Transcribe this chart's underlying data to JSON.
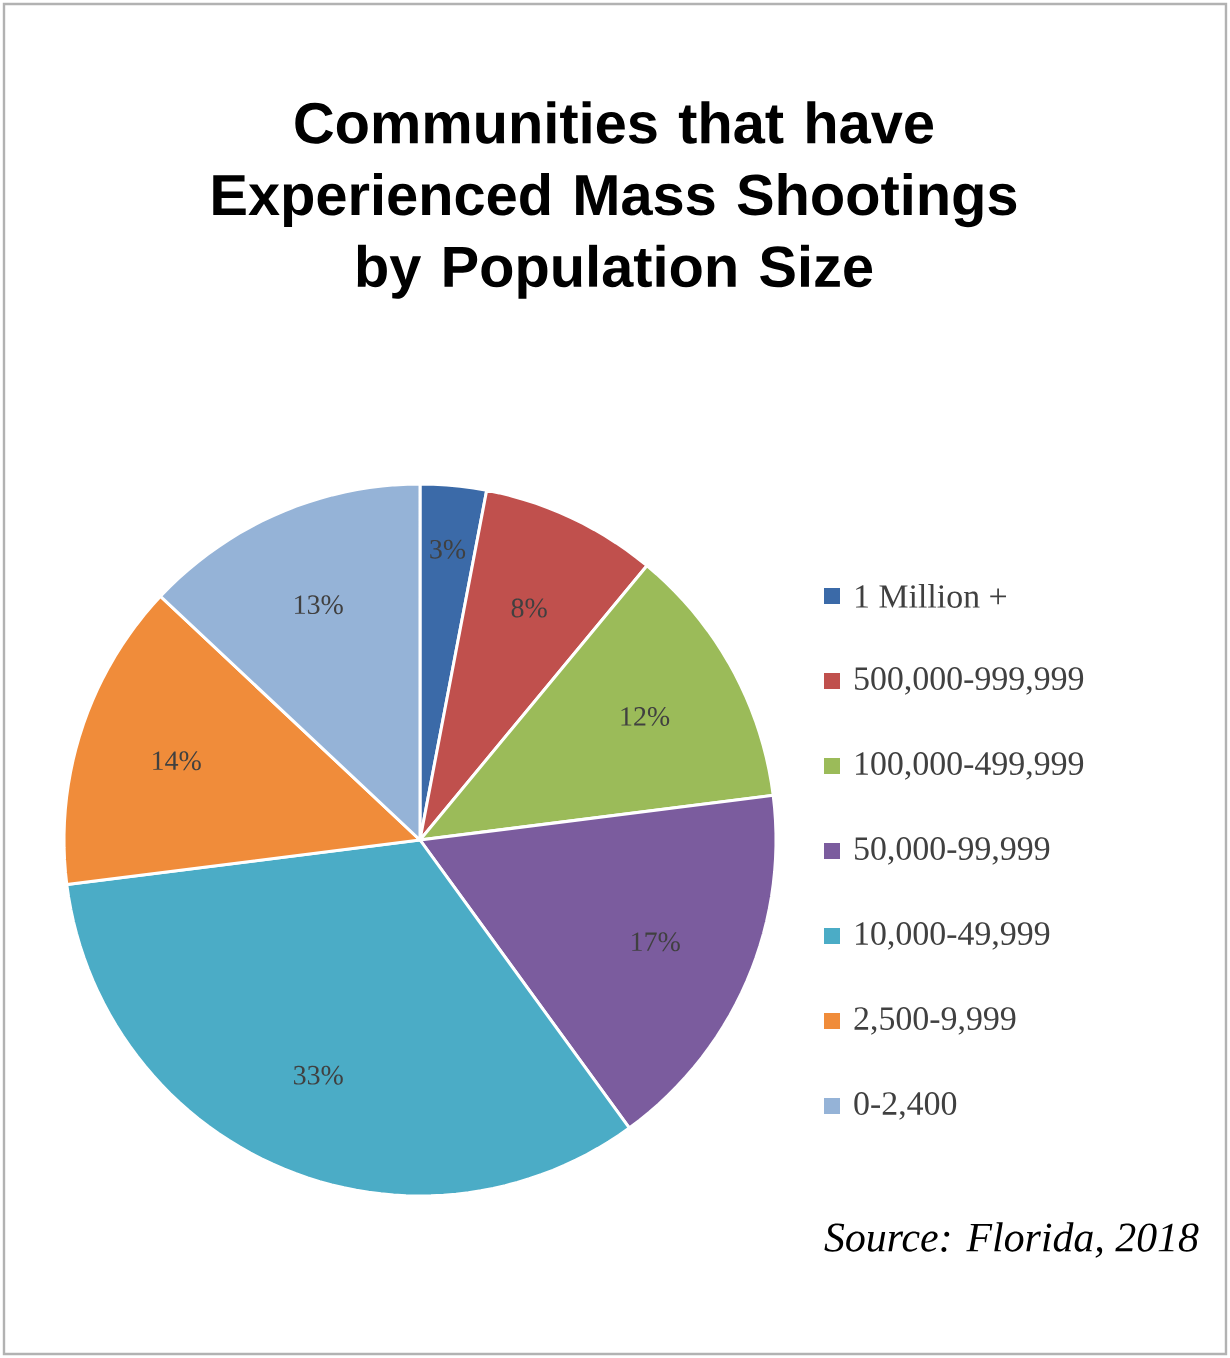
{
  "chart_data": {
    "type": "pie",
    "title": "Communities that have Experienced Mass Shootings by Population Size",
    "categories": [
      "1 Million +",
      "500,000-999,999",
      "100,000-499,999",
      "50,000-99,999",
      "10,000-49,999",
      "2,500-9,999",
      "0-2,400"
    ],
    "values": [
      3,
      8,
      12,
      17,
      33,
      14,
      13
    ],
    "colors": [
      "#3b6aa8",
      "#c0504d",
      "#9bbb59",
      "#7b5c9e",
      "#4bacc6",
      "#f08c3a",
      "#95b3d7"
    ],
    "value_labels": [
      "3%",
      "8%",
      "12%",
      "17%",
      "33%",
      "14%",
      "13%"
    ],
    "legend": "right",
    "annotations": [
      "Source: Florida, 2018"
    ]
  }
}
